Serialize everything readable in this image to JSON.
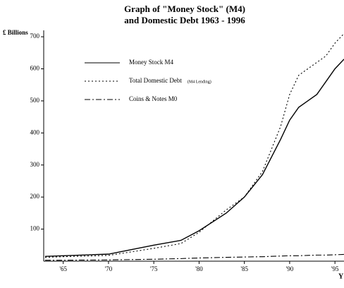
{
  "chart_data": {
    "type": "line",
    "title": "Graph of \"Money Stock\" (M4)",
    "subtitle": "and Domestic Debt  1963 - 1996",
    "y_label": "£ Billions",
    "x_label": "Y",
    "x": [
      1963,
      1965,
      1970,
      1975,
      1978,
      1980,
      1983,
      1985,
      1987,
      1989,
      1990,
      1991,
      1992,
      1993,
      1994,
      1995,
      1996
    ],
    "series": [
      {
        "name": "Money Stock M4",
        "color": "#000000",
        "style": "solid",
        "values": [
          15,
          17,
          22,
          50,
          65,
          95,
          150,
          200,
          270,
          380,
          440,
          480,
          500,
          520,
          560,
          600,
          630
        ]
      },
      {
        "name": "Total Domestic Debt",
        "color": "#000000",
        "style": "dotted",
        "values": [
          12,
          14,
          18,
          40,
          55,
          90,
          160,
          200,
          280,
          420,
          520,
          580,
          600,
          620,
          640,
          680,
          710
        ]
      },
      {
        "name": "Coins & Notes M0",
        "color": "#000000",
        "style": "dashdot",
        "values": [
          3,
          3,
          4,
          6,
          8,
          10,
          12,
          13,
          14,
          16,
          17,
          17,
          18,
          19,
          19,
          20,
          21
        ]
      }
    ],
    "annotations": [
      "(M4 Lending)"
    ],
    "legend": "upper left",
    "xlim": [
      1963,
      1996
    ],
    "ylim": [
      0,
      720
    ],
    "xticks": [
      {
        "value": 1965,
        "label": "'65"
      },
      {
        "value": 1970,
        "label": "'70"
      },
      {
        "value": 1975,
        "label": "'75"
      },
      {
        "value": 1980,
        "label": "'80"
      },
      {
        "value": 1985,
        "label": "'85"
      },
      {
        "value": 1990,
        "label": "'90"
      },
      {
        "value": 1995,
        "label": "'95"
      }
    ],
    "yticks": [
      100,
      200,
      300,
      400,
      500,
      600,
      700
    ],
    "grid": false
  }
}
